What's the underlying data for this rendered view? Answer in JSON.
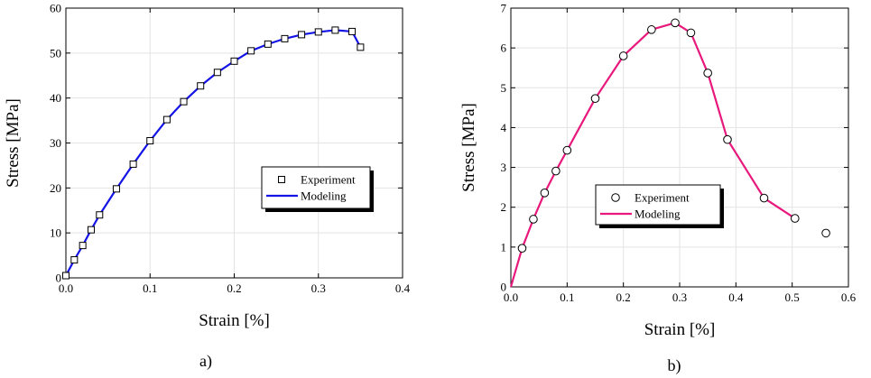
{
  "chart_data": [
    {
      "type": "line",
      "panel_label": "a)",
      "xlabel": "Strain [%]",
      "ylabel": "Stress [MPa]",
      "xlim": [
        0,
        0.4
      ],
      "ylim": [
        0,
        60
      ],
      "xticks": [
        0.0,
        0.1,
        0.2,
        0.3,
        0.4
      ],
      "xtick_labels": [
        "0.0",
        "0.1",
        "0.2",
        "0.3",
        "0.4"
      ],
      "yticks": [
        0,
        10,
        20,
        30,
        40,
        50,
        60
      ],
      "ytick_labels": [
        "0",
        "10",
        "20",
        "30",
        "40",
        "50",
        "60"
      ],
      "grid": true,
      "legend_position": "right",
      "series": [
        {
          "name": "Experiment",
          "kind": "marker",
          "marker": "square",
          "color": "#000000",
          "x": [
            0.0,
            0.01,
            0.02,
            0.03,
            0.04,
            0.06,
            0.08,
            0.1,
            0.12,
            0.14,
            0.16,
            0.18,
            0.2,
            0.22,
            0.24,
            0.26,
            0.28,
            0.3,
            0.32,
            0.34,
            0.35
          ],
          "y": [
            0.5,
            4.0,
            7.2,
            10.7,
            14.0,
            19.8,
            25.3,
            30.5,
            35.2,
            39.2,
            42.7,
            45.7,
            48.2,
            50.5,
            52.0,
            53.2,
            54.1,
            54.7,
            55.1,
            54.8,
            51.3
          ]
        },
        {
          "name": "Modeling",
          "kind": "line",
          "color": "#1414e6",
          "x": [
            0.0,
            0.01,
            0.02,
            0.03,
            0.04,
            0.06,
            0.08,
            0.1,
            0.12,
            0.14,
            0.16,
            0.18,
            0.2,
            0.22,
            0.24,
            0.26,
            0.28,
            0.3,
            0.32,
            0.34,
            0.35
          ],
          "y": [
            0.5,
            4.0,
            7.2,
            10.7,
            14.0,
            19.8,
            25.3,
            30.5,
            35.2,
            39.2,
            42.7,
            45.7,
            48.2,
            50.5,
            52.0,
            53.2,
            54.1,
            54.7,
            55.1,
            54.8,
            51.3
          ]
        }
      ]
    },
    {
      "type": "line",
      "panel_label": "b)",
      "xlabel": "Strain [%]",
      "ylabel": "Stress [MPa]",
      "xlim": [
        0,
        0.6
      ],
      "ylim": [
        0,
        7
      ],
      "xticks": [
        0.0,
        0.1,
        0.2,
        0.3,
        0.4,
        0.5,
        0.6
      ],
      "xtick_labels": [
        "0.0",
        "0.1",
        "0.2",
        "0.3",
        "0.4",
        "0.5",
        "0.6"
      ],
      "yticks": [
        0,
        1,
        2,
        3,
        4,
        5,
        6,
        7
      ],
      "ytick_labels": [
        "0",
        "1",
        "2",
        "3",
        "4",
        "5",
        "6",
        "7"
      ],
      "grid": true,
      "legend_position": "center",
      "series": [
        {
          "name": "Experiment",
          "kind": "marker",
          "marker": "circle",
          "color": "#000000",
          "x": [
            0.02,
            0.04,
            0.06,
            0.08,
            0.1,
            0.15,
            0.2,
            0.25,
            0.292,
            0.32,
            0.35,
            0.385,
            0.45,
            0.505,
            0.56
          ],
          "y": [
            0.97,
            1.7,
            2.36,
            2.91,
            3.43,
            4.73,
            5.8,
            6.46,
            6.63,
            6.38,
            5.37,
            3.7,
            2.23,
            1.72,
            1.35
          ]
        },
        {
          "name": "Modeling",
          "kind": "line",
          "color": "#e8187c",
          "x": [
            0.0,
            0.02,
            0.04,
            0.06,
            0.08,
            0.1,
            0.15,
            0.2,
            0.25,
            0.292,
            0.32,
            0.35,
            0.385,
            0.45,
            0.505
          ],
          "y": [
            0.0,
            0.97,
            1.7,
            2.36,
            2.91,
            3.43,
            4.73,
            5.8,
            6.46,
            6.63,
            6.38,
            5.37,
            3.7,
            2.23,
            1.72
          ]
        }
      ]
    }
  ]
}
